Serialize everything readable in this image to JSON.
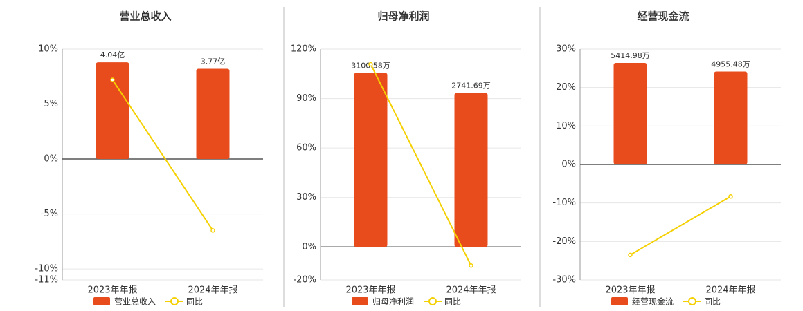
{
  "chart_data": [
    {
      "type": "bar-line",
      "title": "营业总收入",
      "categories": [
        "2023年年报",
        "2024年年报"
      ],
      "series": [
        {
          "name": "营业总收入",
          "color": "#e84c1c",
          "type": "bar",
          "values": [
            4.04,
            3.77
          ],
          "value_labels": [
            "4.04亿",
            "3.77亿"
          ]
        },
        {
          "name": "同比",
          "color": "#f5d000",
          "type": "line",
          "values": [
            7.2,
            -6.5
          ]
        }
      ],
      "ylim": [
        -11,
        10
      ],
      "yticks": [
        {
          "value": 10,
          "label": "10%"
        },
        {
          "value": 5,
          "label": "5%"
        },
        {
          "value": 0,
          "label": "0%"
        },
        {
          "value": -5,
          "label": "-5%"
        },
        {
          "value": -10,
          "label": "-10%"
        },
        {
          "value": -11,
          "label": "-11%"
        }
      ],
      "grid": true
    },
    {
      "type": "bar-line",
      "title": "归母净利润",
      "categories": [
        "2023年年报",
        "2024年年报"
      ],
      "series": [
        {
          "name": "归母净利润",
          "color": "#e84c1c",
          "type": "bar",
          "values": [
            3100.58,
            2741.69
          ],
          "value_labels": [
            "3100.58万",
            "2741.69万"
          ]
        },
        {
          "name": "同比",
          "color": "#f5d000",
          "type": "line",
          "values": [
            110.8,
            -11.3
          ]
        }
      ],
      "ylim": [
        -20,
        120
      ],
      "yticks": [
        {
          "value": 120,
          "label": "120%"
        },
        {
          "value": 90,
          "label": "90%"
        },
        {
          "value": 60,
          "label": "60%"
        },
        {
          "value": 30,
          "label": "30%"
        },
        {
          "value": 0,
          "label": "0%"
        },
        {
          "value": -20,
          "label": "-20%"
        }
      ],
      "grid": true
    },
    {
      "type": "bar-line",
      "title": "经营现金流",
      "categories": [
        "2023年年报",
        "2024年年报"
      ],
      "series": [
        {
          "name": "经营现金流",
          "color": "#e84c1c",
          "type": "bar",
          "values": [
            5414.98,
            4955.48
          ],
          "value_labels": [
            "5414.98万",
            "4955.48万"
          ]
        },
        {
          "name": "同比",
          "color": "#f5d000",
          "type": "line",
          "values": [
            -23.5,
            -8.3
          ]
        }
      ],
      "ylim": [
        -30,
        30
      ],
      "yticks": [
        {
          "value": 30,
          "label": "30%"
        },
        {
          "value": 20,
          "label": "20%"
        },
        {
          "value": 10,
          "label": "10%"
        },
        {
          "value": 0,
          "label": "0%"
        },
        {
          "value": -10,
          "label": "-10%"
        },
        {
          "value": -20,
          "label": "-20%"
        },
        {
          "value": -30,
          "label": "-30%"
        }
      ],
      "grid": true
    }
  ]
}
